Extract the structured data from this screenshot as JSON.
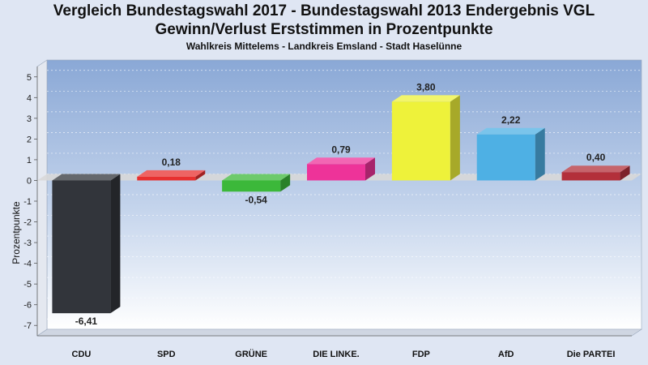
{
  "header": {
    "title_line1": "Vergleich Bundestagswahl 2017 - Bundestagswahl 2013 Endergebnis VGL",
    "title_line2": "Gewinn/Verlust Erststimmen in Prozentpunkte",
    "subtitle": "Wahlkreis Mittelems - Landkreis Emsland - Stadt Haselünne"
  },
  "chart_data": {
    "type": "bar",
    "title": "Vergleich Bundestagswahl 2017 - Bundestagswahl 2013 Endergebnis VGL / Gewinn/Verlust Erststimmen in Prozentpunkte",
    "subtitle": "Wahlkreis Mittelems - Landkreis Emsland - Stadt Haselünne",
    "xlabel": "",
    "ylabel": "Prozentpunkte",
    "ylim": [
      -7.5,
      5.5
    ],
    "yticks": [
      5,
      4,
      3,
      2,
      1,
      0,
      -1,
      -2,
      -3,
      -4,
      -5,
      -6,
      -7
    ],
    "categories": [
      "CDU",
      "SPD",
      "GRÜNE",
      "DIE LINKE.",
      "FDP",
      "AfD",
      "Die PARTEI"
    ],
    "values": [
      -6.41,
      0.18,
      -0.54,
      0.79,
      3.8,
      2.22,
      0.4
    ],
    "value_labels": [
      "-6,41",
      "0,18",
      "-0,54",
      "0,79",
      "3,80",
      "2,22",
      "0,40"
    ],
    "colors": [
      "#32353b",
      "#e8302f",
      "#3cb83a",
      "#ee3399",
      "#eef23a",
      "#4eb0e4",
      "#b3303a"
    ],
    "grid": true,
    "style": "3d"
  }
}
